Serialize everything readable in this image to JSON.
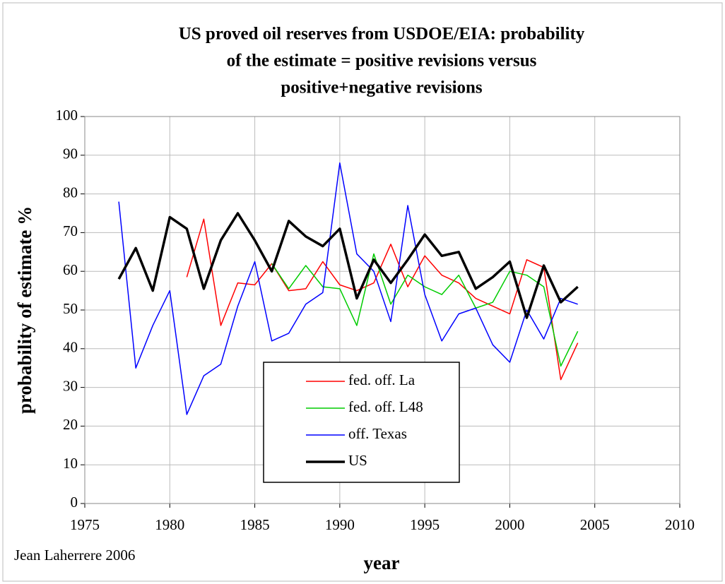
{
  "chart_data": {
    "type": "line",
    "title": [
      "US proved oil reserves from USDOE/EIA: probability",
      "of the estimate = positive revisions versus",
      "positive+negative revisions"
    ],
    "x_label": "year",
    "y_label": "probability of estimate %",
    "annotation": "Jean Laherrere 2006",
    "x": [
      1977,
      1978,
      1979,
      1980,
      1981,
      1982,
      1983,
      1984,
      1985,
      1986,
      1987,
      1988,
      1989,
      1990,
      1991,
      1992,
      1993,
      1994,
      1995,
      1996,
      1997,
      1998,
      1999,
      2000,
      2001,
      2002,
      2003,
      2004
    ],
    "series": [
      {
        "name": "fed. off. La",
        "color": "#ff0000",
        "width": 1.5,
        "values": [
          null,
          null,
          null,
          null,
          58.5,
          73.5,
          46,
          57,
          56.5,
          62,
          55,
          55.5,
          62.5,
          56.5,
          55,
          57,
          67,
          56,
          64,
          59,
          57,
          53,
          51,
          49,
          63,
          61,
          32,
          41.5
        ]
      },
      {
        "name": "fed. off. L48",
        "color": "#00cc00",
        "width": 1.5,
        "values": [
          null,
          null,
          null,
          null,
          null,
          null,
          null,
          null,
          null,
          62,
          55.5,
          61.5,
          56,
          55.5,
          46,
          64.5,
          51.5,
          59,
          56,
          54,
          59,
          50.5,
          52,
          60,
          59,
          56,
          35.5,
          44.5
        ]
      },
      {
        "name": "off. Texas",
        "color": "#0000ff",
        "width": 1.5,
        "values": [
          78,
          35,
          46,
          55,
          23,
          33,
          36,
          51,
          62.5,
          42,
          44,
          51.5,
          54.5,
          88,
          64.5,
          60,
          47,
          77,
          54,
          42,
          49,
          50.5,
          41,
          36.5,
          50,
          42.5,
          53,
          51.5
        ]
      },
      {
        "name": "US",
        "color": "#000000",
        "width": 3.5,
        "values": [
          58,
          66,
          55,
          74,
          71,
          55.5,
          68,
          75,
          68,
          60,
          73,
          69,
          66.5,
          71,
          53,
          63,
          57,
          63,
          69.5,
          64,
          65,
          55.5,
          58.5,
          62.5,
          48,
          61.5,
          52,
          56
        ]
      }
    ],
    "xlim": [
      1975,
      2010
    ],
    "xticks": [
      1975,
      1980,
      1985,
      1990,
      1995,
      2000,
      2005,
      2010
    ],
    "ylim": [
      0,
      100
    ],
    "yticks": [
      0,
      10,
      20,
      30,
      40,
      50,
      60,
      70,
      80,
      90,
      100
    ],
    "grid": true
  }
}
